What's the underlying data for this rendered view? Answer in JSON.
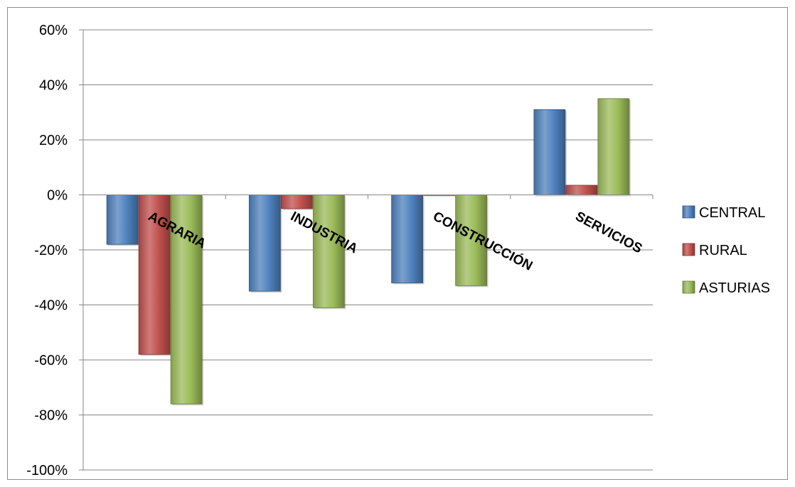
{
  "chart_data": {
    "type": "bar",
    "categories": [
      "AGRARIA",
      "INDUSTRIA",
      "CONSTRUCCIÓN",
      "SERVICIOS"
    ],
    "series": [
      {
        "name": "CENTRAL",
        "values": [
          -18,
          -35,
          -32,
          31
        ],
        "color": "#4f81bd"
      },
      {
        "name": "RURAL",
        "values": [
          -58,
          -5,
          0,
          3.5
        ],
        "color": "#c0504d"
      },
      {
        "name": "ASTURIAS",
        "values": [
          -76,
          -41,
          -33,
          35
        ],
        "color": "#9bbb59"
      }
    ],
    "ylim": [
      -100,
      60
    ],
    "yticks": [
      "60%",
      "40%",
      "20%",
      "0%",
      "-20%",
      "-40%",
      "-60%",
      "-80%",
      "-100%"
    ],
    "grid": true,
    "legend_position": "right"
  }
}
